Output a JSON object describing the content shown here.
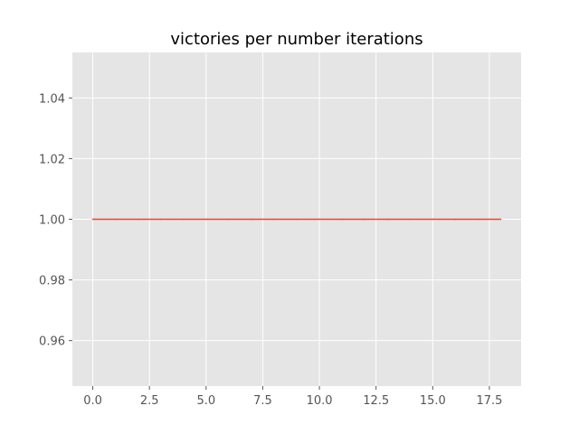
{
  "chart_data": {
    "type": "line",
    "title": "victories per number iterations",
    "xlabel": "",
    "ylabel": "",
    "xlim": [
      -0.9,
      18.9
    ],
    "ylim": [
      0.945,
      1.055
    ],
    "grid": true,
    "style": "ggplot",
    "background_color": "#E5E5E5",
    "grid_color": "#FFFFFF",
    "series": [
      {
        "color": "#E24A33",
        "x": [
          0,
          1,
          2,
          3,
          4,
          5,
          6,
          7,
          8,
          9,
          10,
          11,
          12,
          13,
          14,
          15,
          16,
          17,
          18
        ],
        "y": [
          1,
          1,
          1,
          1,
          1,
          1,
          1,
          1,
          1,
          1,
          1,
          1,
          1,
          1,
          1,
          1,
          1,
          1,
          1
        ]
      }
    ],
    "x_ticks": [
      0.0,
      2.5,
      5.0,
      7.5,
      10.0,
      12.5,
      15.0,
      17.5
    ],
    "x_tick_labels": [
      "0.0",
      "2.5",
      "5.0",
      "7.5",
      "10.0",
      "12.5",
      "15.0",
      "17.5"
    ],
    "y_ticks": [
      0.96,
      0.98,
      1.0,
      1.02,
      1.04
    ],
    "y_tick_labels": [
      "0.96",
      "0.98",
      "1.00",
      "1.02",
      "1.04"
    ]
  }
}
